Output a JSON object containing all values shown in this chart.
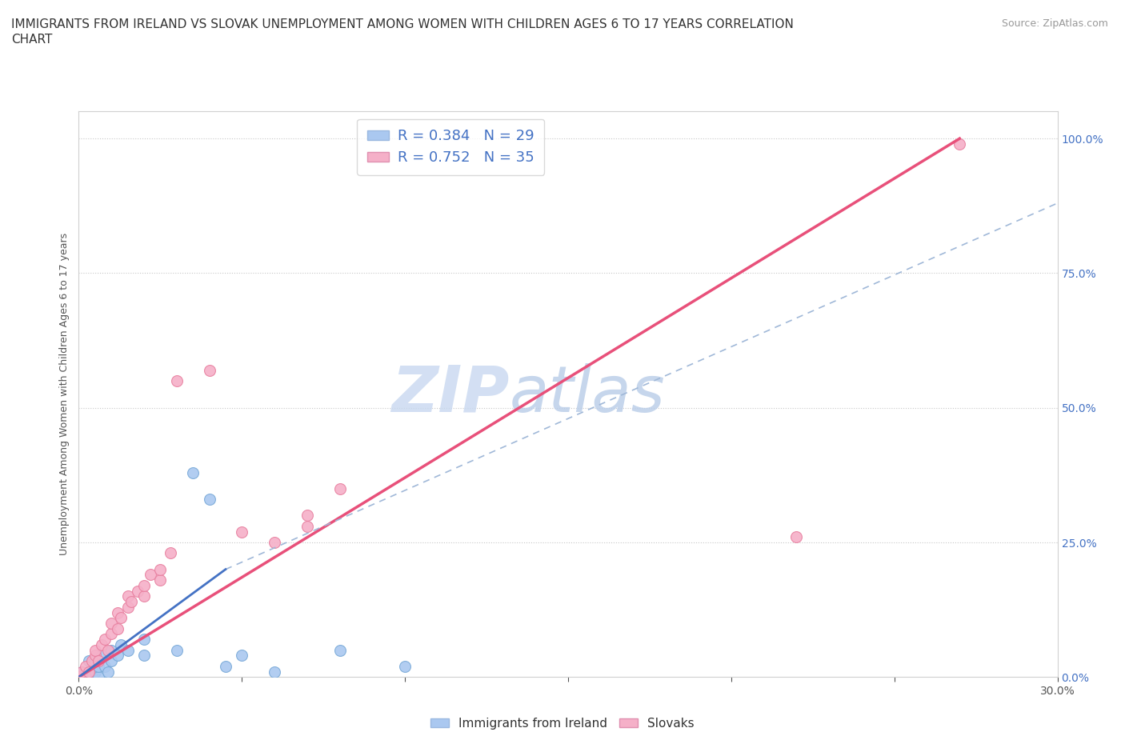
{
  "title_line1": "IMMIGRANTS FROM IRELAND VS SLOVAK UNEMPLOYMENT AMONG WOMEN WITH CHILDREN AGES 6 TO 17 YEARS CORRELATION",
  "title_line2": "CHART",
  "source": "Source: ZipAtlas.com",
  "xlim": [
    0,
    0.3
  ],
  "ylim": [
    0,
    1.05
  ],
  "ylabel": "Unemployment Among Women with Children Ages 6 to 17 years",
  "legend_r1": "R = 0.384   N = 29",
  "legend_r2": "R = 0.752   N = 35",
  "ireland_scatter": [
    [
      0.0,
      0.0
    ],
    [
      0.001,
      0.01
    ],
    [
      0.002,
      0.0
    ],
    [
      0.003,
      0.01
    ],
    [
      0.003,
      0.03
    ],
    [
      0.004,
      0.0
    ],
    [
      0.004,
      0.02
    ],
    [
      0.005,
      0.01
    ],
    [
      0.005,
      0.03
    ],
    [
      0.006,
      0.0
    ],
    [
      0.006,
      0.02
    ],
    [
      0.007,
      0.04
    ],
    [
      0.008,
      0.02
    ],
    [
      0.009,
      0.01
    ],
    [
      0.01,
      0.03
    ],
    [
      0.01,
      0.05
    ],
    [
      0.012,
      0.04
    ],
    [
      0.013,
      0.06
    ],
    [
      0.015,
      0.05
    ],
    [
      0.02,
      0.04
    ],
    [
      0.02,
      0.07
    ],
    [
      0.03,
      0.05
    ],
    [
      0.035,
      0.38
    ],
    [
      0.04,
      0.33
    ],
    [
      0.045,
      0.02
    ],
    [
      0.05,
      0.04
    ],
    [
      0.06,
      0.01
    ],
    [
      0.08,
      0.05
    ],
    [
      0.1,
      0.02
    ]
  ],
  "slovak_scatter": [
    [
      0.0,
      0.0
    ],
    [
      0.001,
      0.01
    ],
    [
      0.002,
      0.02
    ],
    [
      0.003,
      0.01
    ],
    [
      0.004,
      0.03
    ],
    [
      0.005,
      0.04
    ],
    [
      0.005,
      0.05
    ],
    [
      0.006,
      0.03
    ],
    [
      0.007,
      0.06
    ],
    [
      0.008,
      0.07
    ],
    [
      0.009,
      0.05
    ],
    [
      0.01,
      0.08
    ],
    [
      0.01,
      0.1
    ],
    [
      0.012,
      0.09
    ],
    [
      0.012,
      0.12
    ],
    [
      0.013,
      0.11
    ],
    [
      0.015,
      0.13
    ],
    [
      0.015,
      0.15
    ],
    [
      0.016,
      0.14
    ],
    [
      0.018,
      0.16
    ],
    [
      0.02,
      0.15
    ],
    [
      0.02,
      0.17
    ],
    [
      0.022,
      0.19
    ],
    [
      0.025,
      0.18
    ],
    [
      0.025,
      0.2
    ],
    [
      0.028,
      0.23
    ],
    [
      0.03,
      0.55
    ],
    [
      0.04,
      0.57
    ],
    [
      0.05,
      0.27
    ],
    [
      0.06,
      0.25
    ],
    [
      0.07,
      0.28
    ],
    [
      0.07,
      0.3
    ],
    [
      0.08,
      0.35
    ],
    [
      0.22,
      0.26
    ],
    [
      0.27,
      0.99
    ]
  ],
  "ireland_line_solid": [
    [
      0.0,
      0.0
    ],
    [
      0.045,
      0.2
    ]
  ],
  "ireland_line_dashed": [
    [
      0.045,
      0.2
    ],
    [
      0.3,
      0.88
    ]
  ],
  "slovak_line": [
    [
      0.0,
      0.0
    ],
    [
      0.27,
      1.0
    ]
  ],
  "scatter_size": 100,
  "ireland_color": "#aac8f0",
  "ireland_edge": "#7aaad8",
  "slovak_color": "#f5b0c8",
  "slovak_edge": "#e880a0",
  "ireland_line_color": "#4472c4",
  "slovak_line_color": "#e8507a",
  "dashed_line_color": "#a0b8d8",
  "grid_color": "#c8c8c8",
  "background_color": "#ffffff",
  "watermark_zip": "ZIP",
  "watermark_atlas": "atlas",
  "watermark_color": "#c8d8f0",
  "title_fontsize": 11,
  "axis_label_fontsize": 9,
  "tick_fontsize": 10,
  "legend_fontsize": 13
}
